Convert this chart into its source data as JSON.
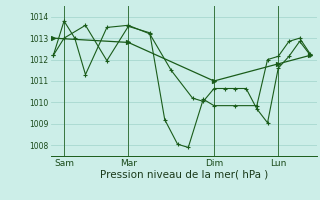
{
  "bg_color": "#cceee8",
  "grid_color": "#a8d8d0",
  "line_color": "#1a5c1a",
  "xlabel": "Pression niveau de la mer( hPa )",
  "xlabel_fontsize": 7.5,
  "ylim": [
    1007.5,
    1014.5
  ],
  "yticks": [
    1008,
    1009,
    1010,
    1011,
    1012,
    1013,
    1014
  ],
  "day_labels": [
    "Sam",
    "Mar",
    "Dim",
    "Lun"
  ],
  "day_positions": [
    0.5,
    3.5,
    7.5,
    10.5
  ],
  "day_vlines": [
    0.5,
    3.5,
    7.5,
    10.5
  ],
  "series1_x": [
    0.0,
    0.5,
    1.0,
    1.5,
    2.5,
    3.5,
    4.5,
    5.5,
    6.5,
    7.0,
    7.5,
    8.0,
    8.5,
    9.0,
    9.5,
    10.0,
    10.5,
    11.0,
    11.5,
    12.0
  ],
  "series1_y": [
    1012.2,
    1013.8,
    1013.0,
    1011.3,
    1013.5,
    1013.6,
    1013.2,
    1011.5,
    1010.2,
    1010.05,
    1010.65,
    1010.65,
    1010.65,
    1010.65,
    1009.7,
    1009.05,
    1011.6,
    1012.15,
    1012.85,
    1012.2
  ],
  "series2_x": [
    0.0,
    0.5,
    1.5,
    2.5,
    3.5,
    4.5,
    5.2,
    5.8,
    6.3,
    7.0,
    7.5,
    8.5,
    9.5,
    10.0,
    10.5,
    11.0,
    11.5,
    12.0
  ],
  "series2_y": [
    1012.2,
    1013.0,
    1013.6,
    1011.95,
    1013.55,
    1013.25,
    1009.2,
    1008.05,
    1007.9,
    1010.15,
    1009.85,
    1009.85,
    1009.85,
    1012.0,
    1012.15,
    1012.85,
    1013.0,
    1012.25
  ],
  "series3_x": [
    0.0,
    3.5,
    7.5,
    10.5,
    12.0
  ],
  "series3_y": [
    1013.0,
    1012.8,
    1011.0,
    1011.8,
    1012.2
  ],
  "figsize": [
    3.2,
    2.0
  ],
  "dpi": 100
}
